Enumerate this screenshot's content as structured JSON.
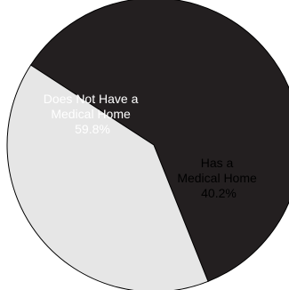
{
  "chart_data": {
    "type": "pie",
    "title": "",
    "slices": [
      {
        "label_lines": [
          "Does Not Have a",
          "Medical Home"
        ],
        "value_label": "59.8%",
        "value": 59.8,
        "color": "#231f20",
        "text_color": "#ffffff"
      },
      {
        "label_lines": [
          "Has a",
          "Medical Home"
        ],
        "value_label": "40.2%",
        "value": 40.2,
        "color": "#e6e6e6",
        "text_color": "#000000"
      }
    ],
    "stroke_color": "#000000",
    "legend": "none"
  }
}
